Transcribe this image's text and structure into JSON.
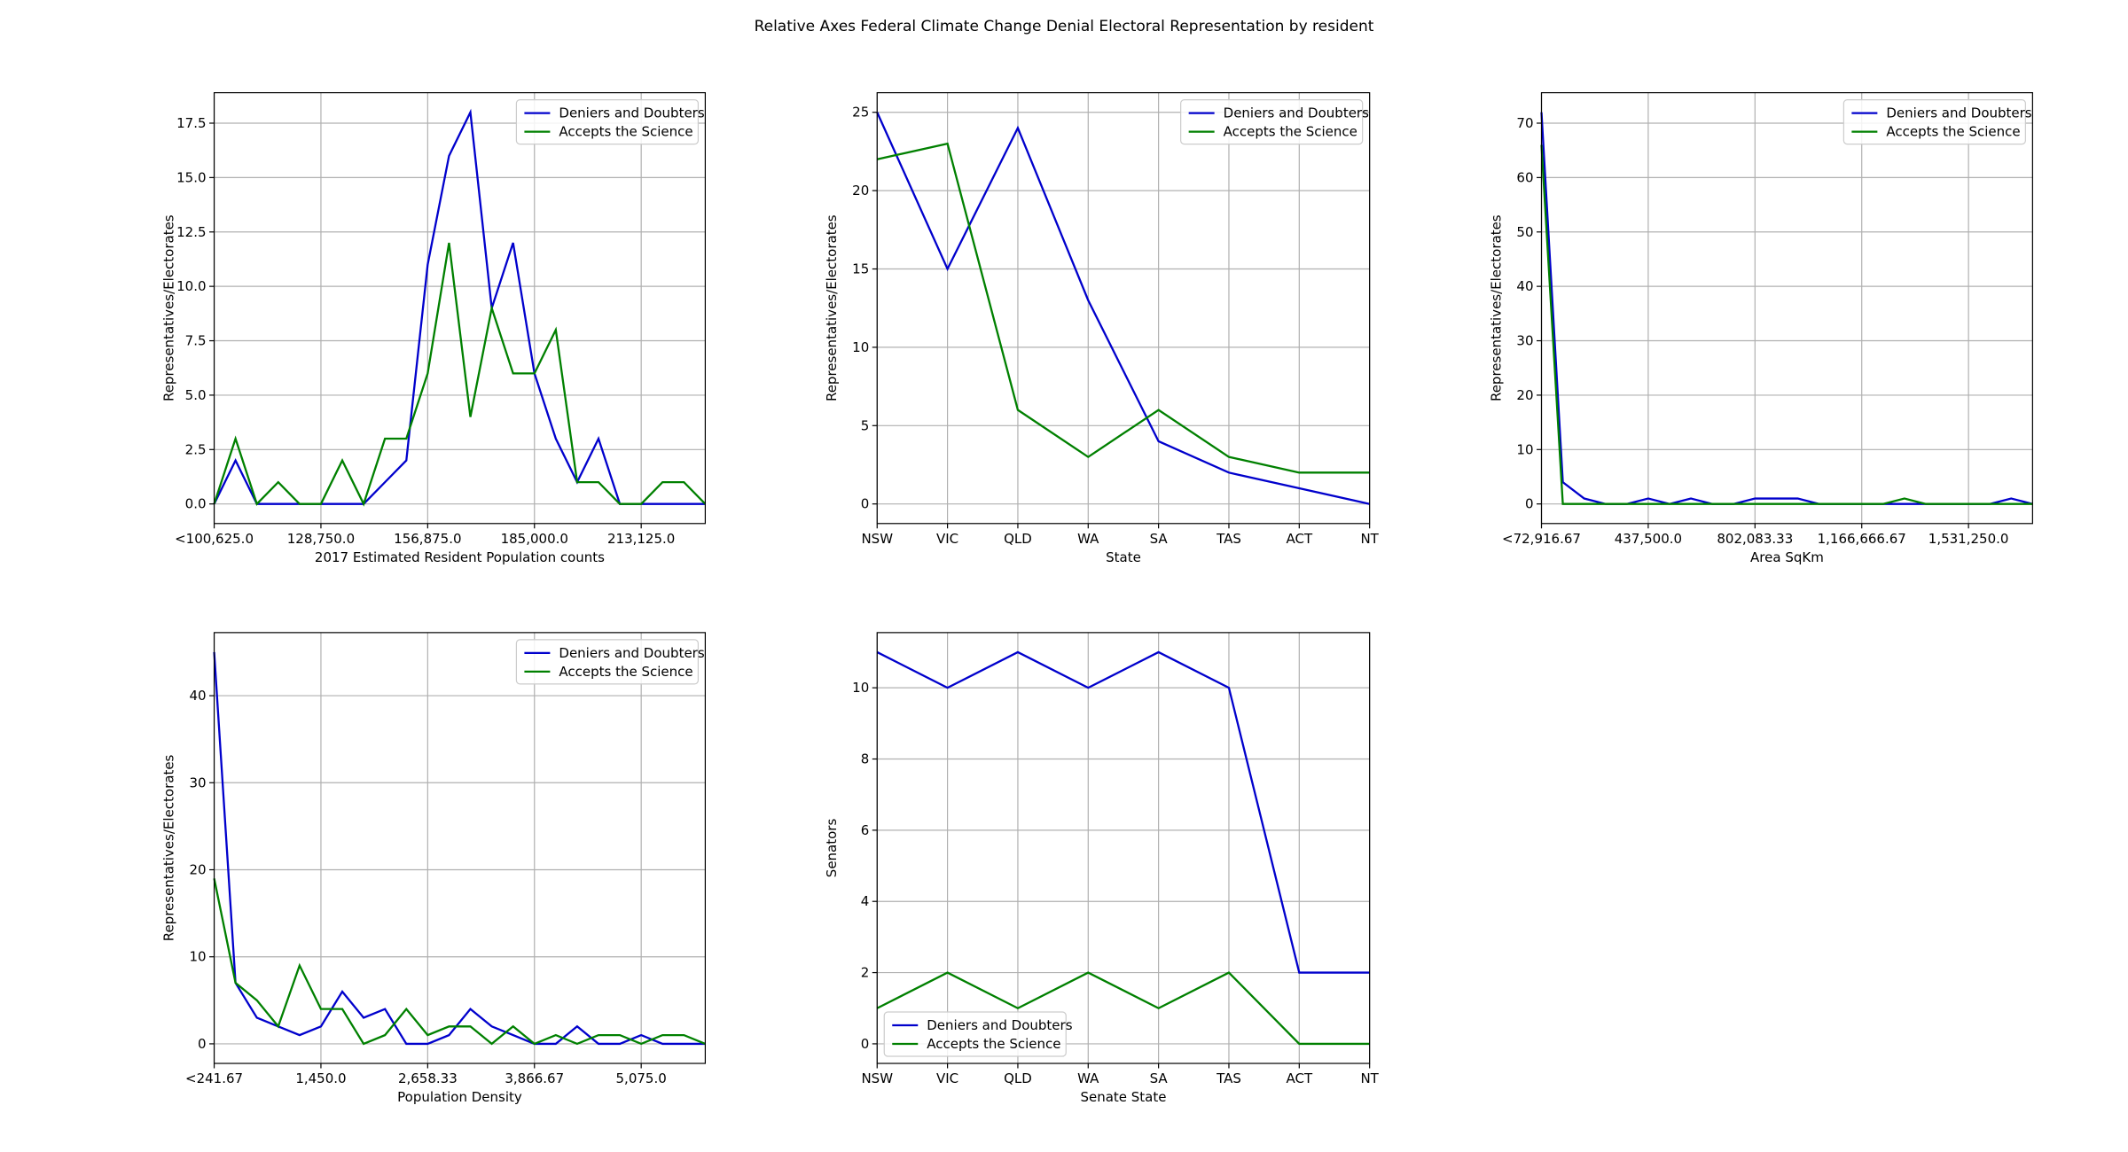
{
  "figure": {
    "title": "Relative Axes Federal Climate Change Denial Electoral Representation by resident"
  },
  "colors": {
    "deniers": "#0000cc",
    "accepts": "#008000"
  },
  "chart_data": [
    {
      "type": "line",
      "xlabel": "2017 Estimated Resident Population counts",
      "ylabel": "Representatives/Electorates",
      "xlim": [
        0,
        23
      ],
      "ylim": [
        -0.9,
        18.9
      ],
      "yticks": [
        0.0,
        2.5,
        5.0,
        7.5,
        10.0,
        12.5,
        15.0,
        17.5
      ],
      "ytick_labels": [
        "0.0",
        "2.5",
        "5.0",
        "7.5",
        "10.0",
        "12.5",
        "15.0",
        "17.5"
      ],
      "xticks": [
        0,
        5,
        10,
        15,
        20
      ],
      "xtick_labels": [
        "<100,625.0",
        "128,750.0",
        "156,875.0",
        "185,000.0",
        "213,125.0"
      ],
      "legend": "top-right",
      "series": [
        {
          "name": "Deniers and Doubters",
          "color": "#0000cc",
          "values": [
            0,
            2,
            0,
            0,
            0,
            0,
            0,
            0,
            1,
            2,
            11,
            16,
            18,
            9,
            12,
            6,
            3,
            1,
            3,
            0,
            0,
            0,
            0,
            0
          ]
        },
        {
          "name": "Accepts the Science",
          "color": "#008000",
          "values": [
            0,
            3,
            0,
            1,
            0,
            0,
            2,
            0,
            3,
            3,
            6,
            12,
            4,
            9,
            6,
            6,
            8,
            1,
            1,
            0,
            0,
            1,
            1,
            0
          ]
        }
      ]
    },
    {
      "type": "line",
      "xlabel": "State",
      "ylabel": "Representatives/Electorates",
      "xlim": [
        0,
        7
      ],
      "ylim": [
        -1.25,
        26.25
      ],
      "yticks": [
        0,
        5,
        10,
        15,
        20,
        25
      ],
      "ytick_labels": [
        "0",
        "5",
        "10",
        "15",
        "20",
        "25"
      ],
      "xticks": [
        0,
        1,
        2,
        3,
        4,
        5,
        6,
        7
      ],
      "xtick_labels": [
        "NSW",
        "VIC",
        "QLD",
        "WA",
        "SA",
        "TAS",
        "ACT",
        "NT"
      ],
      "legend": "top-right",
      "series": [
        {
          "name": "Deniers and Doubters",
          "color": "#0000cc",
          "values": [
            25,
            15,
            24,
            13,
            4,
            2,
            1,
            0
          ]
        },
        {
          "name": "Accepts the Science",
          "color": "#008000",
          "values": [
            22,
            23,
            6,
            3,
            6,
            3,
            2,
            2
          ]
        }
      ]
    },
    {
      "type": "line",
      "xlabel": "Area SqKm",
      "ylabel": "Representatives/Electorates",
      "xlim": [
        0,
        23
      ],
      "ylim": [
        -3.6,
        75.6
      ],
      "yticks": [
        0,
        10,
        20,
        30,
        40,
        50,
        60,
        70
      ],
      "ytick_labels": [
        "0",
        "10",
        "20",
        "30",
        "40",
        "50",
        "60",
        "70"
      ],
      "xticks": [
        0,
        5,
        10,
        15,
        20
      ],
      "xtick_labels": [
        "<72,916.67",
        "437,500.0",
        "802,083.33",
        "1,166,666.67",
        "1,531,250.0"
      ],
      "legend": "top-right",
      "series": [
        {
          "name": "Deniers and Doubters",
          "color": "#0000cc",
          "values": [
            72,
            4,
            1,
            0,
            0,
            1,
            0,
            1,
            0,
            0,
            1,
            1,
            1,
            0,
            0,
            0,
            0,
            0,
            0,
            0,
            0,
            0,
            1,
            0
          ]
        },
        {
          "name": "Accepts the Science",
          "color": "#008000",
          "values": [
            66,
            0,
            0,
            0,
            0,
            0,
            0,
            0,
            0,
            0,
            0,
            0,
            0,
            0,
            0,
            0,
            0,
            1,
            0,
            0,
            0,
            0,
            0,
            0
          ]
        }
      ]
    },
    {
      "type": "line",
      "xlabel": "Population Density",
      "ylabel": "Representatives/Electorates",
      "xlim": [
        0,
        23
      ],
      "ylim": [
        -2.25,
        47.25
      ],
      "yticks": [
        0,
        10,
        20,
        30,
        40
      ],
      "ytick_labels": [
        "0",
        "10",
        "20",
        "30",
        "40"
      ],
      "xticks": [
        0,
        5,
        10,
        15,
        20
      ],
      "xtick_labels": [
        "<241.67",
        "1,450.0",
        "2,658.33",
        "3,866.67",
        "5,075.0"
      ],
      "legend": "top-right",
      "series": [
        {
          "name": "Deniers and Doubters",
          "color": "#0000cc",
          "values": [
            45,
            7,
            3,
            2,
            1,
            2,
            6,
            3,
            4,
            0,
            0,
            1,
            4,
            2,
            1,
            0,
            0,
            2,
            0,
            0,
            1,
            0,
            0,
            0
          ]
        },
        {
          "name": "Accepts the Science",
          "color": "#008000",
          "values": [
            19,
            7,
            5,
            2,
            9,
            4,
            4,
            0,
            1,
            4,
            1,
            2,
            2,
            0,
            2,
            0,
            1,
            0,
            1,
            1,
            0,
            1,
            1,
            0
          ]
        }
      ]
    },
    {
      "type": "line",
      "xlabel": "Senate State",
      "ylabel": "Senators",
      "xlim": [
        0,
        7
      ],
      "ylim": [
        -0.55,
        11.55
      ],
      "yticks": [
        0,
        2,
        4,
        6,
        8,
        10
      ],
      "ytick_labels": [
        "0",
        "2",
        "4",
        "6",
        "8",
        "10"
      ],
      "xticks": [
        0,
        1,
        2,
        3,
        4,
        5,
        6,
        7
      ],
      "xtick_labels": [
        "NSW",
        "VIC",
        "QLD",
        "WA",
        "SA",
        "TAS",
        "ACT",
        "NT"
      ],
      "legend": "bottom-left",
      "series": [
        {
          "name": "Deniers and Doubters",
          "color": "#0000cc",
          "values": [
            11,
            10,
            11,
            10,
            11,
            10,
            2,
            2
          ]
        },
        {
          "name": "Accepts the Science",
          "color": "#008000",
          "values": [
            1,
            2,
            1,
            2,
            1,
            2,
            0,
            0
          ]
        }
      ]
    }
  ]
}
